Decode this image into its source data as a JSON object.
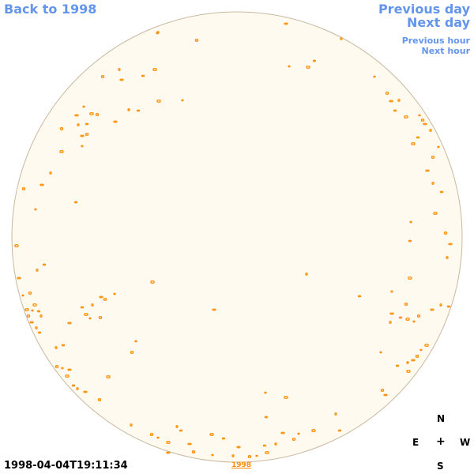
{
  "nav": {
    "back_to_year": "Back to 1998",
    "previous_day": "Previous day",
    "next_day": "Next day",
    "previous_hour": "Previous hour",
    "next_hour": "Next hour"
  },
  "timestamp": "1998-04-04T19:11:34",
  "year_link": "1998",
  "compass": {
    "north": "N",
    "east": "E",
    "west": "W",
    "south": "S",
    "center": "+"
  },
  "colors": {
    "disk_fill": "#fffaef",
    "disk_border": "#c8b8a0",
    "feature": "#ff8c00",
    "link": "#6495ed"
  }
}
